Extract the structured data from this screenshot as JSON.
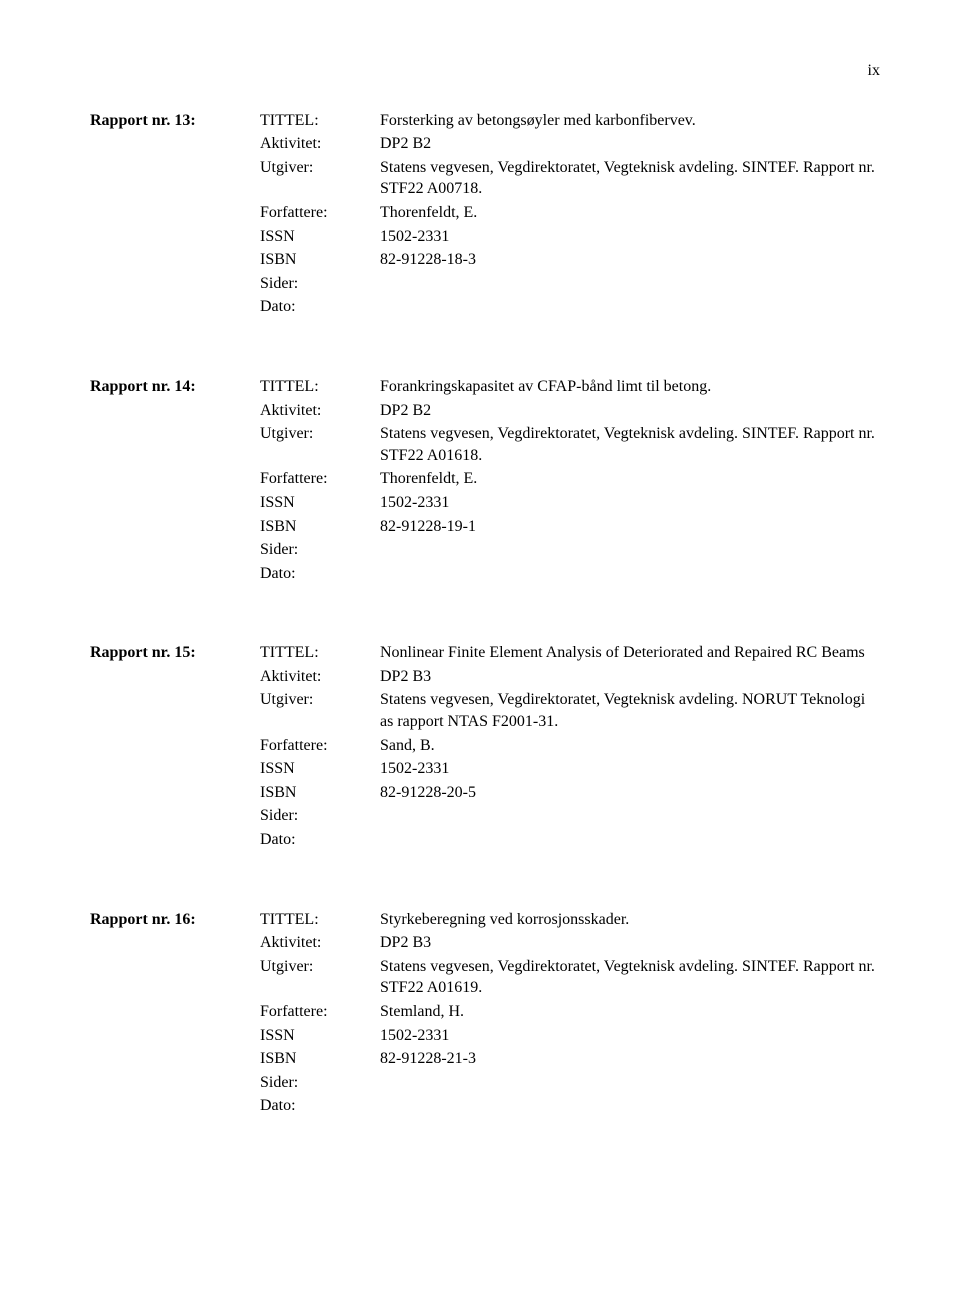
{
  "page_number": "ix",
  "reports": [
    {
      "rapport_label": "Rapport nr. 13:",
      "rows": [
        {
          "label": "TITTEL:",
          "value": "Forsterking av betongsøyler med karbonfibervev."
        },
        {
          "label": "Aktivitet:",
          "value": "DP2 B2"
        },
        {
          "label": "Utgiver:",
          "value": "Statens vegvesen, Vegdirektoratet, Vegteknisk avdeling. SINTEF. Rapport nr. STF22 A00718."
        },
        {
          "label": "Forfattere:",
          "value": "Thorenfeldt, E."
        },
        {
          "label": "ISSN",
          "value": "1502-2331"
        },
        {
          "label": "ISBN",
          "value": "82-91228-18-3"
        },
        {
          "label": "Sider:",
          "value": ""
        },
        {
          "label": "Dato:",
          "value": ""
        }
      ]
    },
    {
      "rapport_label": "Rapport nr. 14:",
      "rows": [
        {
          "label": "TITTEL:",
          "value": "Forankringskapasitet av CFAP-bånd limt til betong."
        },
        {
          "label": "Aktivitet:",
          "value": "DP2 B2"
        },
        {
          "label": "Utgiver:",
          "value": "Statens vegvesen, Vegdirektoratet, Vegteknisk avdeling. SINTEF. Rapport nr. STF22 A01618."
        },
        {
          "label": "Forfattere:",
          "value": "Thorenfeldt, E."
        },
        {
          "label": "ISSN",
          "value": "1502-2331"
        },
        {
          "label": "ISBN",
          "value": "82-91228-19-1"
        },
        {
          "label": "Sider:",
          "value": ""
        },
        {
          "label": "Dato:",
          "value": ""
        }
      ]
    },
    {
      "rapport_label": "Rapport nr. 15:",
      "rows": [
        {
          "label": "TITTEL:",
          "value": "Nonlinear Finite Element Analysis of Deteriorated and Repaired RC Beams"
        },
        {
          "label": "Aktivitet:",
          "value": "DP2 B3"
        },
        {
          "label": "Utgiver:",
          "value": "Statens vegvesen, Vegdirektoratet, Vegteknisk avdeling. NORUT Teknologi as rapport NTAS F2001-31."
        },
        {
          "label": "Forfattere:",
          "value": "Sand, B."
        },
        {
          "label": "ISSN",
          "value": "1502-2331"
        },
        {
          "label": "ISBN",
          "value": "82-91228-20-5"
        },
        {
          "label": "Sider:",
          "value": ""
        },
        {
          "label": "Dato:",
          "value": ""
        }
      ]
    },
    {
      "rapport_label": "Rapport nr. 16:",
      "rows": [
        {
          "label": "TITTEL:",
          "value": "Styrkeberegning ved korrosjonsskader."
        },
        {
          "label": "Aktivitet:",
          "value": "DP2 B3"
        },
        {
          "label": "Utgiver:",
          "value": "Statens vegvesen, Vegdirektoratet, Vegteknisk avdeling. SINTEF. Rapport nr. STF22 A01619."
        },
        {
          "label": "Forfattere:",
          "value": "Stemland, H."
        },
        {
          "label": "ISSN",
          "value": "1502-2331"
        },
        {
          "label": "ISBN",
          "value": "82-91228-21-3"
        },
        {
          "label": "Sider:",
          "value": ""
        },
        {
          "label": "Dato:",
          "value": ""
        }
      ]
    }
  ]
}
